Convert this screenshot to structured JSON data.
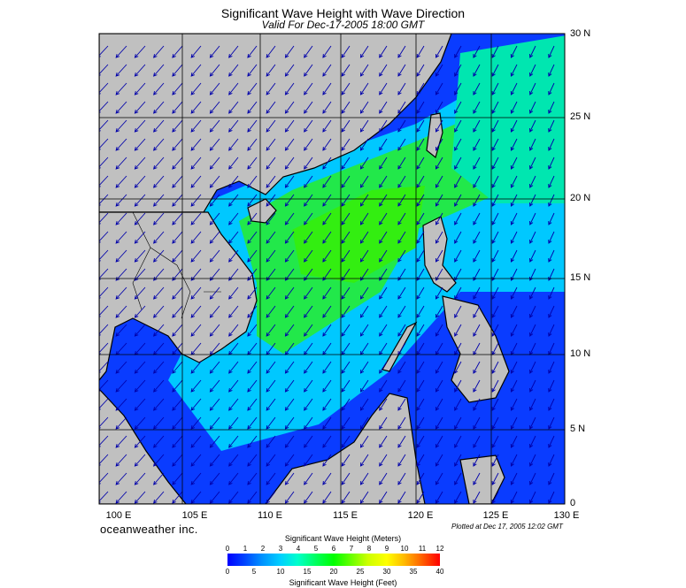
{
  "title": "Significant Wave Height with Wave Direction",
  "subtitle": "Valid For Dec-17-2005 18:00 GMT",
  "latitude_labels": [
    "30 N",
    "25 N",
    "20 N",
    "15 N",
    "10 N",
    "5 N",
    "0"
  ],
  "longitude_labels": [
    "100 E",
    "105 E",
    "110 E",
    "115 E",
    "120 E",
    "125 E",
    "130 E"
  ],
  "brand": "oceanweather inc.",
  "plotted_note": "Plotted at Dec 17, 2005 12:02 GMT",
  "colorbar": {
    "meters_title": "Significant Wave Height (Meters)",
    "meters_ticks": [
      "0",
      "1",
      "2",
      "3",
      "4",
      "5",
      "6",
      "7",
      "8",
      "9",
      "10",
      "11",
      "12"
    ],
    "feet_ticks": [
      "0",
      "5",
      "10",
      "15",
      "20",
      "25",
      "30",
      "35",
      "40"
    ],
    "feet_title": "Significant Wave Height (Feet)"
  },
  "colors": {
    "land": "#c0c0c0",
    "ocean_low": "#0a3cff",
    "ocean_mid": "#00c8ff",
    "ocean_high": "#00ee22",
    "arrows": "#0000aa"
  }
}
